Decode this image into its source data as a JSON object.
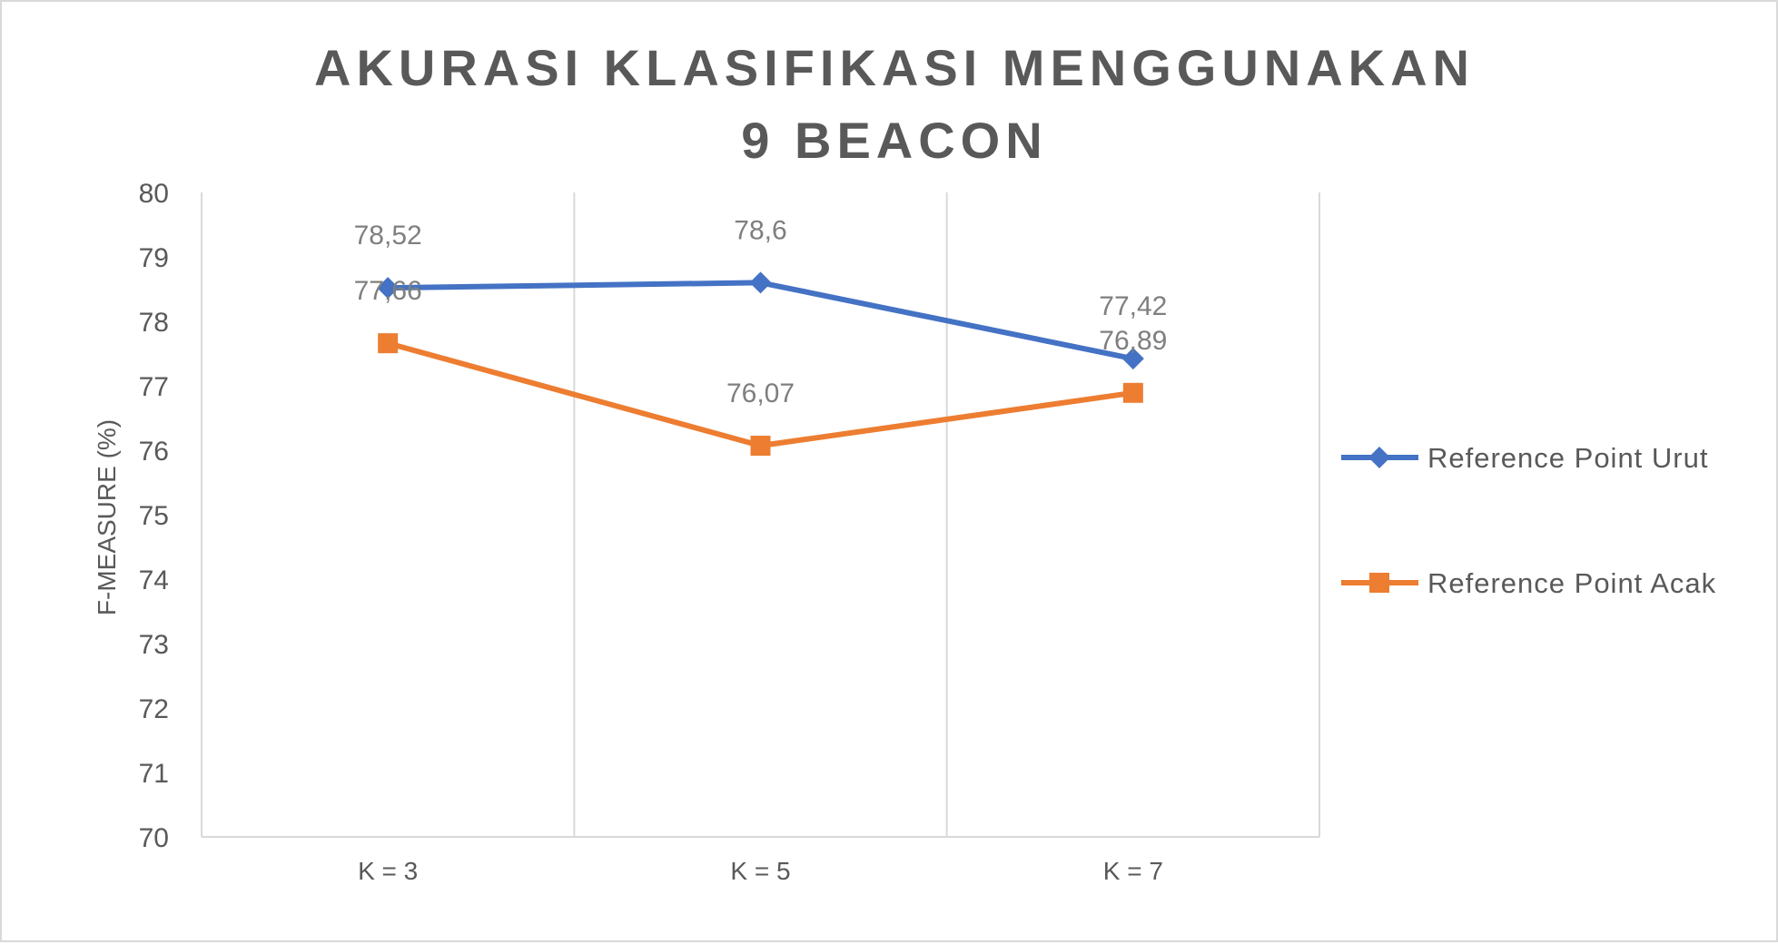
{
  "chart_data": {
    "type": "line",
    "title_lines": [
      "AKURASI KLASIFIKASI MENGGUNAKAN",
      "9 BEACON"
    ],
    "xlabel": "",
    "ylabel": "F-MEASURE (%)",
    "categories": [
      "K = 3",
      "K = 5",
      "K = 7"
    ],
    "ylim": [
      70,
      80
    ],
    "yticks": [
      "70",
      "71",
      "72",
      "73",
      "74",
      "75",
      "76",
      "77",
      "78",
      "79",
      "80"
    ],
    "grid": "vertical",
    "legend_position": "right",
    "series": [
      {
        "name": "Reference Point Urut",
        "color": "#4472c4",
        "marker": "diamond",
        "values": [
          78.52,
          78.6,
          77.42
        ],
        "labels": [
          "78,52",
          "78,6",
          "77,42"
        ]
      },
      {
        "name": "Reference Point Acak",
        "color": "#ed7d31",
        "marker": "square",
        "values": [
          77.66,
          76.07,
          76.89
        ],
        "labels": [
          "77,66",
          "76,07",
          "76,89"
        ]
      }
    ]
  }
}
